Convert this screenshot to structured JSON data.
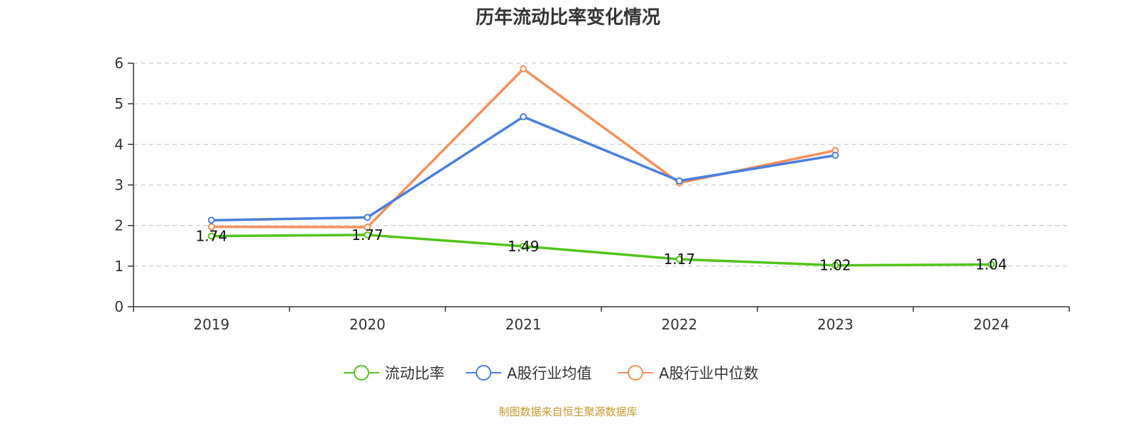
{
  "chart_data": {
    "type": "line",
    "title": "历年流动比率变化情况",
    "categories": [
      "2019",
      "2020",
      "2021",
      "2022",
      "2023",
      "2024"
    ],
    "ylim": [
      0,
      6
    ],
    "yticks": [
      "0",
      "1",
      "2",
      "3",
      "4",
      "5",
      "6"
    ],
    "grid": true,
    "legend_position": "bottom-center",
    "series": [
      {
        "name": "流动比率",
        "color": "#52c41a",
        "values": [
          1.74,
          1.77,
          1.49,
          1.17,
          1.02,
          1.04
        ],
        "labels": [
          "1.74",
          "1.77",
          "1.49",
          "1.17",
          "1.02",
          "1.04"
        ]
      },
      {
        "name": "A股行业均值",
        "color": "#4a7fe0",
        "values": [
          2.13,
          2.2,
          4.68,
          3.1,
          3.73,
          null
        ]
      },
      {
        "name": "A股行业中位数",
        "color": "#f5905a",
        "values": [
          1.97,
          1.96,
          5.86,
          3.05,
          3.85,
          null
        ]
      }
    ],
    "source": "制图数据来自恒生聚源数据库"
  }
}
